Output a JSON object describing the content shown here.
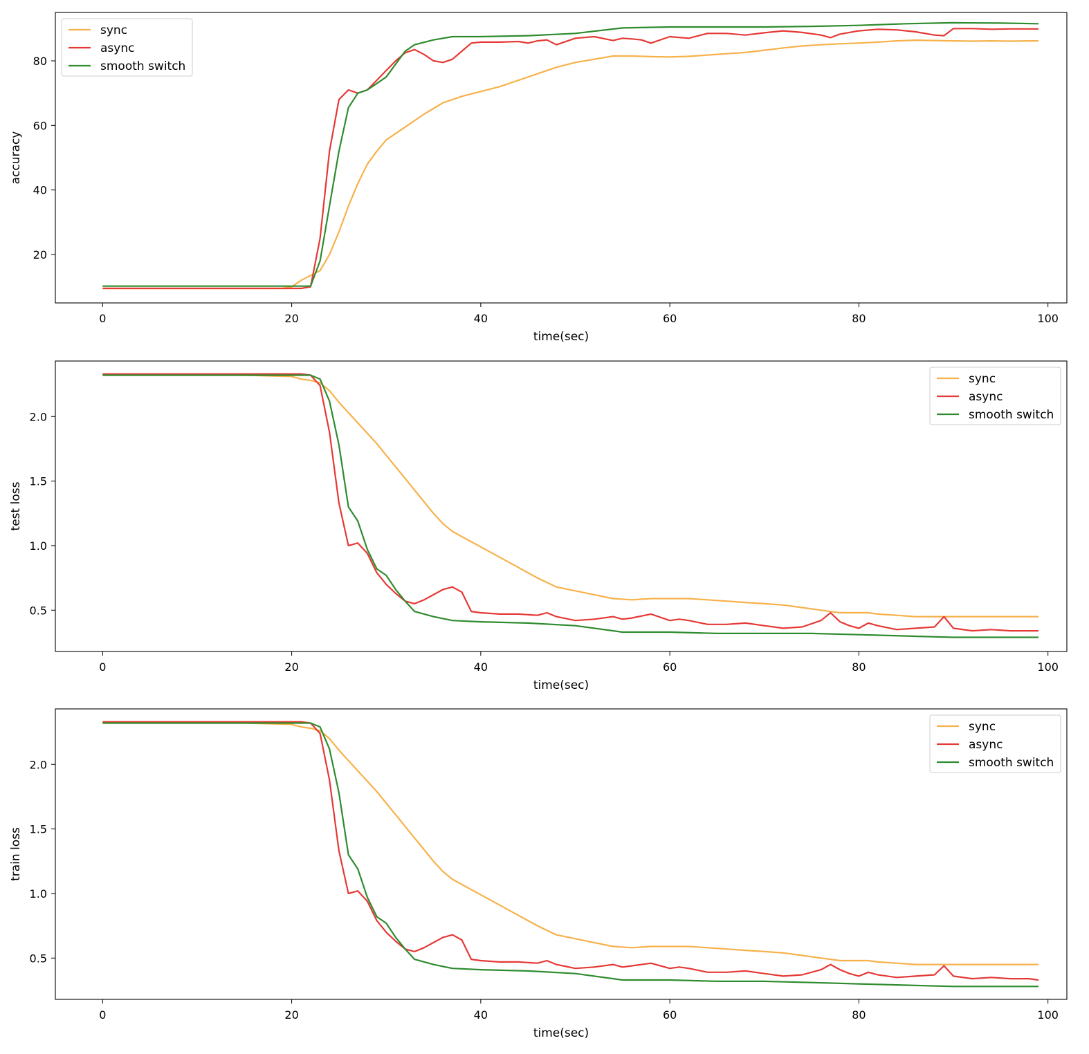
{
  "colors": {
    "sync": "#f7b14a",
    "async": "#e53935",
    "smooth_switch": "#2e8b2e",
    "axis": "#000000",
    "background": "#ffffff"
  },
  "chart_data": [
    {
      "type": "line",
      "title": "",
      "xlabel": "time(sec)",
      "ylabel": "accuracy",
      "xlim": [
        -5,
        102
      ],
      "ylim": [
        5,
        95
      ],
      "xticks": [
        0,
        20,
        40,
        60,
        80,
        100
      ],
      "xtick_labels": [
        "0",
        "20",
        "40",
        "60",
        "80",
        "100"
      ],
      "yticks": [
        20,
        40,
        60,
        80
      ],
      "ytick_labels": [
        "20",
        "40",
        "60",
        "80"
      ],
      "grid": false,
      "legend_position": "top-left",
      "series": [
        {
          "name": "sync",
          "color_key": "sync",
          "x": [
            0,
            5,
            10,
            15,
            19,
            20,
            21,
            22,
            23,
            24,
            25,
            26,
            27,
            28,
            29,
            30,
            32,
            34,
            36,
            38,
            40,
            42,
            44,
            46,
            48,
            50,
            52,
            54,
            56,
            58,
            60,
            62,
            64,
            66,
            68,
            70,
            72,
            74,
            76,
            78,
            80,
            82,
            84,
            86,
            88,
            90,
            92,
            94,
            96,
            98,
            99
          ],
          "y": [
            9.5,
            9.5,
            9.5,
            9.5,
            9.5,
            10,
            12,
            13.5,
            15,
            20,
            27,
            35,
            42,
            48,
            52,
            55.5,
            59.5,
            63.5,
            67,
            69,
            70.5,
            72,
            74,
            76,
            78,
            79.5,
            80.5,
            81.5,
            81.5,
            81.3,
            81.2,
            81.4,
            81.8,
            82.2,
            82.6,
            83.3,
            84,
            84.6,
            85,
            85.3,
            85.5,
            85.8,
            86.2,
            86.4,
            86.3,
            86.2,
            86.1,
            86.2,
            86.1,
            86.2,
            86.2
          ]
        },
        {
          "name": "async",
          "color_key": "async",
          "x": [
            0,
            5,
            10,
            15,
            20,
            21,
            22,
            23,
            24,
            25,
            26,
            27,
            28,
            29,
            30,
            31,
            32,
            33,
            34,
            35,
            36,
            37,
            38,
            39,
            40,
            42,
            44,
            45,
            46,
            47,
            48,
            50,
            52,
            54,
            55,
            56,
            57,
            58,
            60,
            62,
            64,
            66,
            68,
            70,
            72,
            74,
            76,
            77,
            78,
            80,
            82,
            84,
            86,
            88,
            89,
            90,
            92,
            94,
            96,
            98,
            99
          ],
          "y": [
            9.5,
            9.5,
            9.5,
            9.5,
            9.5,
            9.5,
            10,
            25,
            52,
            68,
            71,
            70,
            71,
            74,
            77,
            80,
            82.5,
            83.5,
            82,
            80,
            79.5,
            80.5,
            83,
            85.5,
            85.8,
            85.8,
            86,
            85.5,
            86.2,
            86.5,
            85,
            87,
            87.5,
            86.3,
            87,
            86.8,
            86.5,
            85.5,
            87.5,
            87,
            88.5,
            88.5,
            88,
            88.7,
            89.3,
            88.8,
            88,
            87.2,
            88.3,
            89.3,
            89.8,
            89.6,
            89,
            88,
            87.8,
            90,
            90,
            89.8,
            89.9,
            89.9,
            89.9
          ]
        },
        {
          "name": "smooth switch",
          "color_key": "smooth_switch",
          "x": [
            0,
            5,
            10,
            15,
            20,
            21,
            22,
            23,
            24,
            25,
            26,
            27,
            28,
            29,
            30,
            31,
            32,
            33,
            35,
            37,
            40,
            45,
            50,
            55,
            60,
            65,
            70,
            75,
            80,
            85,
            90,
            95,
            99
          ],
          "y": [
            10.2,
            10.2,
            10.2,
            10.2,
            10.2,
            10.2,
            10.2,
            18,
            35,
            52,
            65.5,
            70,
            71,
            73,
            75,
            79,
            83,
            85,
            86.5,
            87.5,
            87.5,
            87.8,
            88.5,
            90.2,
            90.5,
            90.5,
            90.5,
            90.7,
            91,
            91.5,
            91.8,
            91.7,
            91.5
          ]
        }
      ]
    },
    {
      "type": "line",
      "title": "",
      "xlabel": "time(sec)",
      "ylabel": "test loss",
      "xlim": [
        -5,
        102
      ],
      "ylim": [
        0.18,
        2.43
      ],
      "xticks": [
        0,
        20,
        40,
        60,
        80,
        100
      ],
      "xtick_labels": [
        "0",
        "20",
        "40",
        "60",
        "80",
        "100"
      ],
      "yticks": [
        0.5,
        1.0,
        1.5,
        2.0
      ],
      "ytick_labels": [
        "0.5",
        "1.0",
        "1.5",
        "2.0"
      ],
      "grid": false,
      "legend_position": "top-right",
      "series": [
        {
          "name": "sync",
          "color_key": "sync",
          "x": [
            0,
            5,
            10,
            15,
            20,
            21,
            22,
            23,
            24,
            25,
            26,
            27,
            28,
            29,
            30,
            31,
            32,
            33,
            34,
            35,
            36,
            37,
            38,
            40,
            42,
            44,
            46,
            48,
            50,
            52,
            54,
            56,
            58,
            60,
            62,
            64,
            66,
            68,
            70,
            72,
            74,
            76,
            78,
            80,
            81,
            82,
            84,
            86,
            88,
            90,
            92,
            94,
            96,
            98,
            99
          ],
          "y": [
            2.32,
            2.32,
            2.32,
            2.32,
            2.31,
            2.29,
            2.28,
            2.26,
            2.2,
            2.11,
            2.03,
            1.95,
            1.87,
            1.79,
            1.7,
            1.61,
            1.52,
            1.43,
            1.34,
            1.25,
            1.17,
            1.11,
            1.07,
            0.99,
            0.91,
            0.83,
            0.75,
            0.68,
            0.65,
            0.62,
            0.59,
            0.58,
            0.59,
            0.59,
            0.59,
            0.58,
            0.57,
            0.56,
            0.55,
            0.54,
            0.52,
            0.5,
            0.48,
            0.48,
            0.48,
            0.47,
            0.46,
            0.45,
            0.45,
            0.45,
            0.45,
            0.45,
            0.45,
            0.45,
            0.45
          ]
        },
        {
          "name": "async",
          "color_key": "async",
          "x": [
            0,
            5,
            10,
            15,
            20,
            21,
            22,
            23,
            24,
            25,
            26,
            27,
            28,
            29,
            30,
            31,
            32,
            33,
            34,
            35,
            36,
            37,
            38,
            39,
            40,
            42,
            44,
            46,
            47,
            48,
            50,
            52,
            54,
            55,
            56,
            58,
            60,
            61,
            62,
            64,
            66,
            68,
            70,
            72,
            74,
            76,
            77,
            78,
            79,
            80,
            81,
            82,
            84,
            86,
            88,
            89,
            90,
            92,
            94,
            96,
            98,
            99
          ],
          "y": [
            2.33,
            2.33,
            2.33,
            2.33,
            2.33,
            2.33,
            2.32,
            2.24,
            1.88,
            1.33,
            1.0,
            1.02,
            0.94,
            0.79,
            0.7,
            0.63,
            0.57,
            0.55,
            0.58,
            0.62,
            0.66,
            0.68,
            0.64,
            0.49,
            0.48,
            0.47,
            0.47,
            0.46,
            0.48,
            0.45,
            0.42,
            0.43,
            0.45,
            0.43,
            0.44,
            0.47,
            0.42,
            0.43,
            0.42,
            0.39,
            0.39,
            0.4,
            0.38,
            0.36,
            0.37,
            0.42,
            0.48,
            0.41,
            0.38,
            0.36,
            0.4,
            0.38,
            0.35,
            0.36,
            0.37,
            0.45,
            0.36,
            0.34,
            0.35,
            0.34,
            0.34,
            0.34
          ]
        },
        {
          "name": "smooth switch",
          "color_key": "smooth_switch",
          "x": [
            0,
            5,
            10,
            15,
            20,
            21,
            22,
            23,
            24,
            25,
            26,
            27,
            28,
            29,
            30,
            31,
            32,
            33,
            35,
            37,
            40,
            45,
            50,
            55,
            60,
            65,
            70,
            75,
            80,
            85,
            90,
            95,
            99
          ],
          "y": [
            2.32,
            2.32,
            2.32,
            2.32,
            2.32,
            2.32,
            2.32,
            2.29,
            2.12,
            1.78,
            1.3,
            1.19,
            0.97,
            0.82,
            0.77,
            0.66,
            0.57,
            0.49,
            0.45,
            0.42,
            0.41,
            0.4,
            0.38,
            0.33,
            0.33,
            0.32,
            0.32,
            0.32,
            0.31,
            0.3,
            0.29,
            0.29,
            0.29
          ]
        }
      ]
    },
    {
      "type": "line",
      "title": "",
      "xlabel": "time(sec)",
      "ylabel": "train loss",
      "xlim": [
        -5,
        102
      ],
      "ylim": [
        0.18,
        2.43
      ],
      "xticks": [
        0,
        20,
        40,
        60,
        80,
        100
      ],
      "xtick_labels": [
        "0",
        "20",
        "40",
        "60",
        "80",
        "100"
      ],
      "yticks": [
        0.5,
        1.0,
        1.5,
        2.0
      ],
      "ytick_labels": [
        "0.5",
        "1.0",
        "1.5",
        "2.0"
      ],
      "grid": false,
      "legend_position": "top-right",
      "series": [
        {
          "name": "sync",
          "color_key": "sync",
          "x": [
            0,
            5,
            10,
            15,
            20,
            21,
            22,
            23,
            24,
            25,
            26,
            27,
            28,
            29,
            30,
            31,
            32,
            33,
            34,
            35,
            36,
            37,
            38,
            40,
            42,
            44,
            46,
            48,
            50,
            52,
            54,
            56,
            58,
            60,
            62,
            64,
            66,
            68,
            70,
            72,
            74,
            76,
            78,
            80,
            81,
            82,
            84,
            86,
            88,
            90,
            92,
            94,
            96,
            98,
            99
          ],
          "y": [
            2.32,
            2.32,
            2.32,
            2.32,
            2.31,
            2.29,
            2.28,
            2.26,
            2.2,
            2.11,
            2.03,
            1.95,
            1.87,
            1.79,
            1.7,
            1.61,
            1.52,
            1.43,
            1.34,
            1.25,
            1.17,
            1.11,
            1.07,
            0.99,
            0.91,
            0.83,
            0.75,
            0.68,
            0.65,
            0.62,
            0.59,
            0.58,
            0.59,
            0.59,
            0.59,
            0.58,
            0.57,
            0.56,
            0.55,
            0.54,
            0.52,
            0.5,
            0.48,
            0.48,
            0.48,
            0.47,
            0.46,
            0.45,
            0.45,
            0.45,
            0.45,
            0.45,
            0.45,
            0.45,
            0.45
          ]
        },
        {
          "name": "async",
          "color_key": "async",
          "x": [
            0,
            5,
            10,
            15,
            20,
            21,
            22,
            23,
            24,
            25,
            26,
            27,
            28,
            29,
            30,
            31,
            32,
            33,
            34,
            35,
            36,
            37,
            38,
            39,
            40,
            42,
            44,
            46,
            47,
            48,
            50,
            52,
            54,
            55,
            56,
            58,
            60,
            61,
            62,
            64,
            66,
            68,
            70,
            72,
            74,
            76,
            77,
            78,
            79,
            80,
            81,
            82,
            84,
            86,
            88,
            89,
            90,
            92,
            94,
            96,
            98,
            99
          ],
          "y": [
            2.33,
            2.33,
            2.33,
            2.33,
            2.33,
            2.33,
            2.32,
            2.24,
            1.88,
            1.33,
            1.0,
            1.02,
            0.94,
            0.79,
            0.7,
            0.63,
            0.57,
            0.55,
            0.58,
            0.62,
            0.66,
            0.68,
            0.64,
            0.49,
            0.48,
            0.47,
            0.47,
            0.46,
            0.48,
            0.45,
            0.42,
            0.43,
            0.45,
            0.43,
            0.44,
            0.46,
            0.42,
            0.43,
            0.42,
            0.39,
            0.39,
            0.4,
            0.38,
            0.36,
            0.37,
            0.41,
            0.45,
            0.41,
            0.38,
            0.36,
            0.39,
            0.37,
            0.35,
            0.36,
            0.37,
            0.44,
            0.36,
            0.34,
            0.35,
            0.34,
            0.34,
            0.33
          ]
        },
        {
          "name": "smooth switch",
          "color_key": "smooth_switch",
          "x": [
            0,
            5,
            10,
            15,
            20,
            21,
            22,
            23,
            24,
            25,
            26,
            27,
            28,
            29,
            30,
            31,
            32,
            33,
            35,
            37,
            40,
            45,
            50,
            55,
            60,
            65,
            70,
            75,
            80,
            85,
            90,
            95,
            99
          ],
          "y": [
            2.32,
            2.32,
            2.32,
            2.32,
            2.32,
            2.32,
            2.32,
            2.29,
            2.12,
            1.78,
            1.3,
            1.19,
            0.97,
            0.82,
            0.77,
            0.66,
            0.57,
            0.49,
            0.45,
            0.42,
            0.41,
            0.4,
            0.38,
            0.33,
            0.33,
            0.32,
            0.32,
            0.31,
            0.3,
            0.29,
            0.28,
            0.28,
            0.28
          ]
        }
      ]
    }
  ]
}
